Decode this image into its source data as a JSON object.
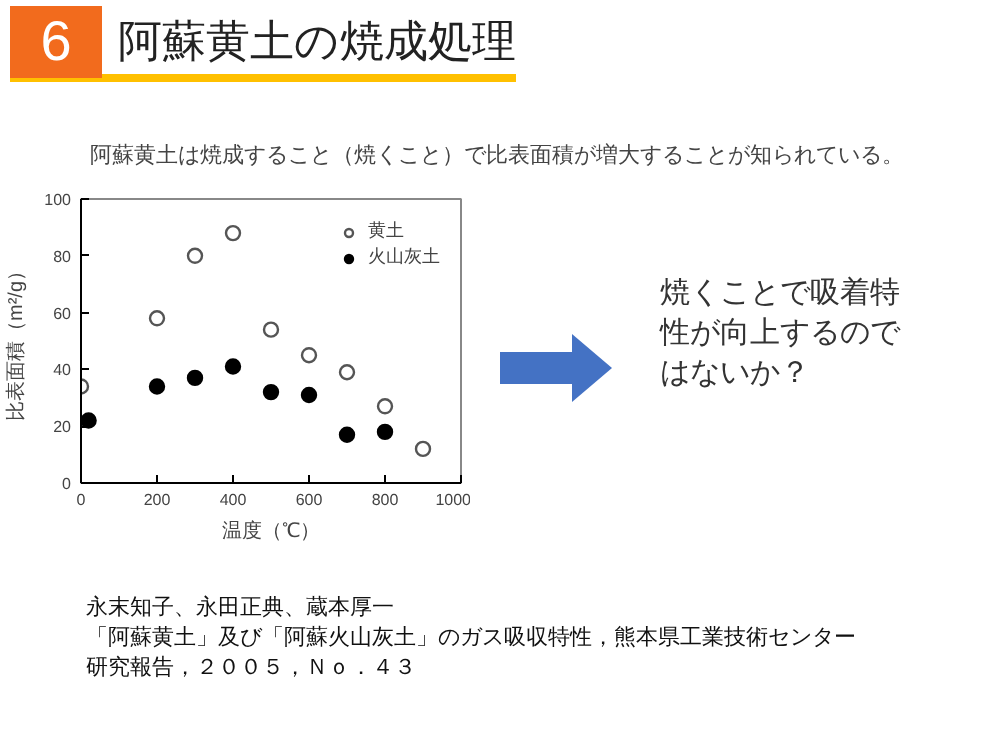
{
  "chart_data": {
    "type": "scatter",
    "title": "阿蘇黄土の焼成処理",
    "subtitle": "阿蘇黄土は焼成すること（焼くこと）で比表面積が増大することが知られている。",
    "xlabel": "温度（℃）",
    "ylabel": "比表面積（m²/g）",
    "xlim": [
      0,
      1000
    ],
    "xticks": [
      0,
      200,
      400,
      600,
      800,
      1000
    ],
    "ylim": [
      0,
      100
    ],
    "yticks": [
      0,
      20,
      40,
      60,
      80,
      100
    ],
    "grid": false,
    "legend": "top right",
    "marker": "circle",
    "series": [
      {
        "name": "黄土",
        "color": "#555555",
        "x": [
          0,
          200,
          300,
          400,
          500,
          600,
          700,
          800,
          900
        ],
        "values": [
          34,
          58,
          80,
          88,
          54,
          45,
          39,
          27,
          12
        ]
      },
      {
        "name": "火山灰土",
        "color": "#000000",
        "x": [
          20,
          200,
          300,
          400,
          500,
          600,
          700,
          800
        ],
        "values": [
          22,
          34,
          37,
          41,
          32,
          31,
          17,
          18
        ]
      }
    ],
    "annotations": [
      "6",
      "焼くことで吸着特性が向上するのではないか？",
      "永末知子、永田正典、蔵本厚一",
      "「阿蘇黄土」及び「阿蘇火山灰土」のガス吸収特性，熊本県工業技術センター",
      "研究報告，２００５，Ｎｏ．４３"
    ]
  }
}
